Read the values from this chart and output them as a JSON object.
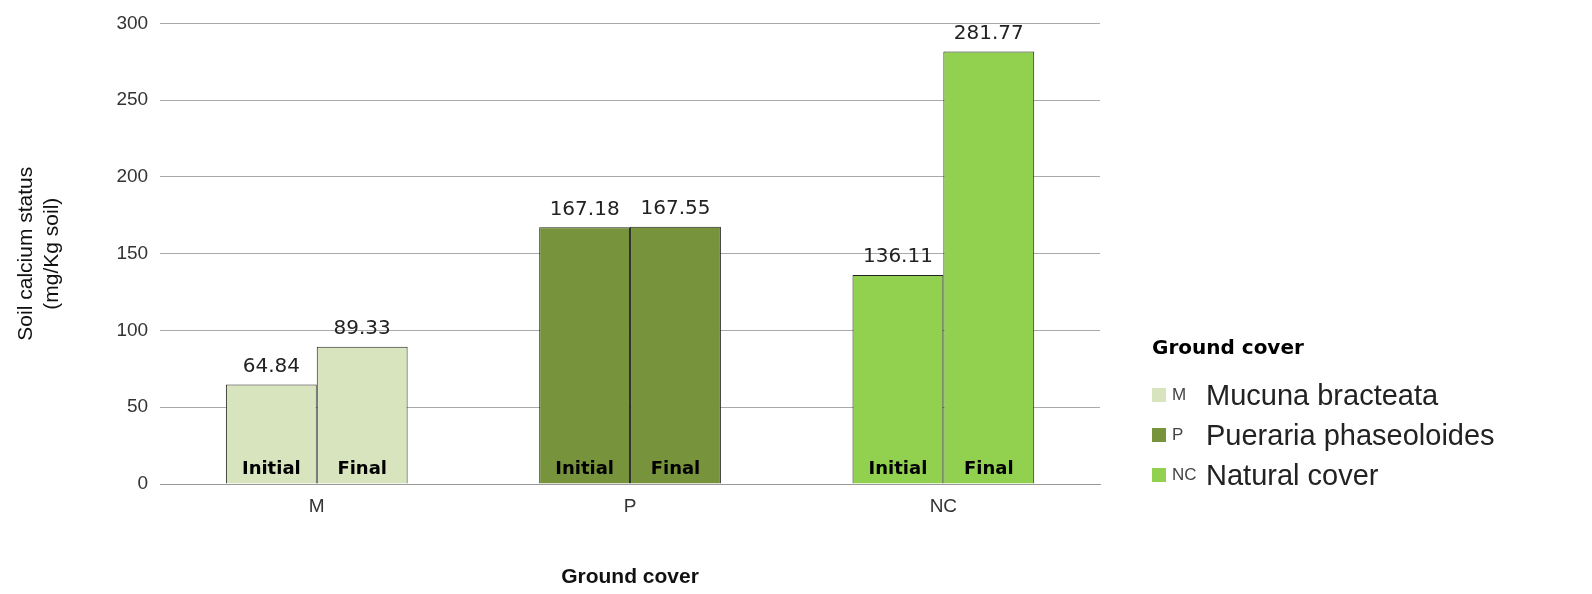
{
  "chart_data": {
    "type": "bar",
    "xlabel": "Ground cover",
    "ylabel": "Soil calcium status (mg/Kg soil)",
    "legend_title": "Ground cover",
    "categories": [
      "M",
      "P",
      "NC"
    ],
    "colors": [
      "#d7e4bd",
      "#77933c",
      "#92d050"
    ],
    "series": [
      {
        "colors": [
          "#d7e4bd",
          "#77933c",
          "#92d050"
        ],
        "values": [
          64.84,
          167.18,
          136.11
        ]
      },
      {
        "colors": [
          "#d7e4bd",
          "#77933c",
          "#92d050"
        ],
        "values": [
          89.33,
          167.55,
          281.77
        ]
      }
    ],
    "annotations": [
      "Mucuna bracteata",
      "Pueraria phaseoloides",
      "Natural cover",
      {
        "text": "Initial",
        "x": "M",
        "y": 0
      },
      {
        "text": "Final",
        "x": "M",
        "y": 0
      },
      {
        "text": "Initial",
        "x": "P",
        "y": 0
      },
      {
        "text": "Final",
        "x": "P",
        "y": 0
      },
      {
        "text": "Initial",
        "x": "NC",
        "y": 0
      },
      {
        "text": "Final",
        "x": "NC",
        "y": 0
      }
    ],
    "ylim": [
      0,
      300
    ],
    "yticks": [
      0,
      50,
      100,
      150,
      200,
      250,
      300
    ],
    "grid": "y",
    "data_labels": true
  }
}
